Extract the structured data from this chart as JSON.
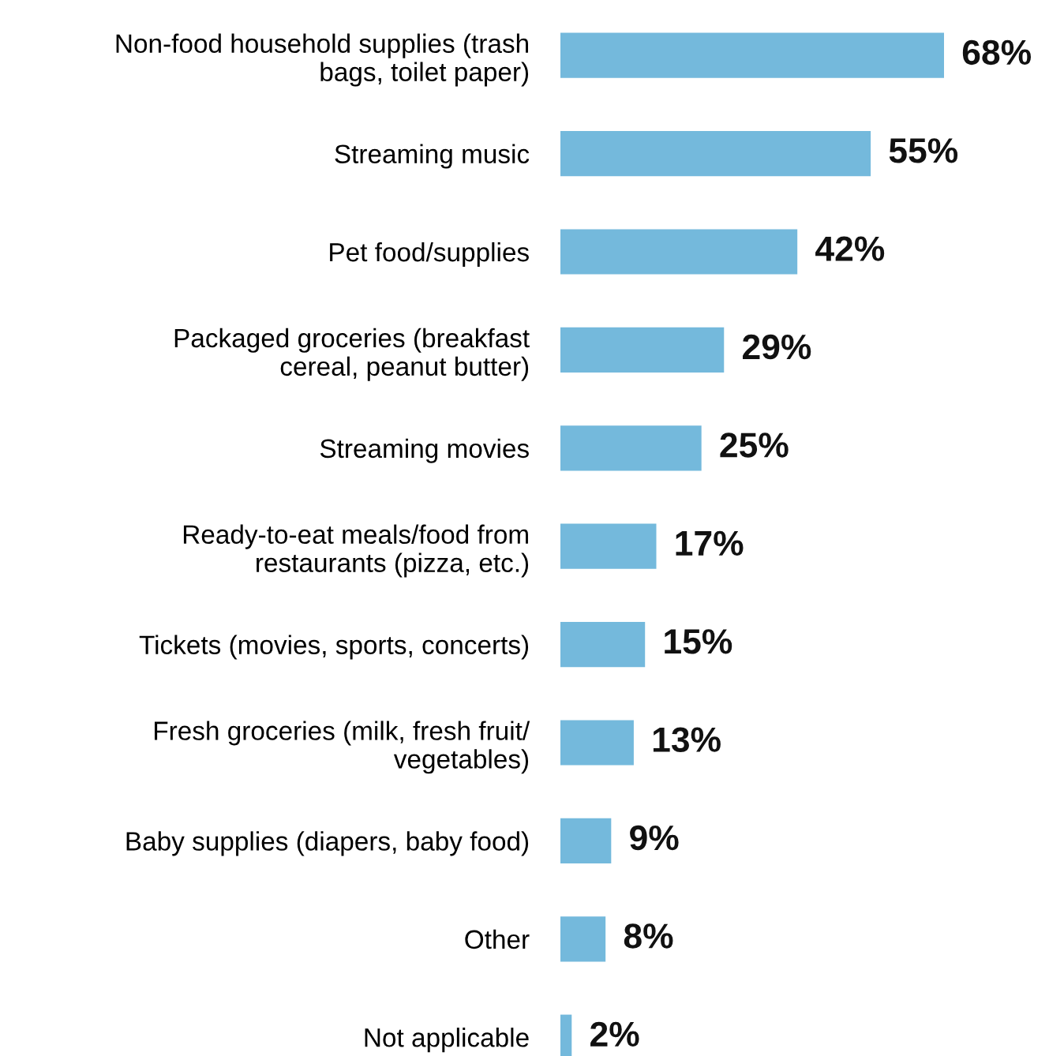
{
  "chart_data": {
    "type": "bar",
    "orientation": "horizontal",
    "categories": [
      "Non-food household supplies (trash\nbags, toilet paper)",
      "Streaming music",
      "Pet food/supplies",
      "Packaged groceries (breakfast\ncereal, peanut butter)",
      "Streaming movies",
      "Ready-to-eat meals/food from\nrestaurants (pizza, etc.)",
      "Tickets (movies, sports, concerts)",
      "Fresh groceries (milk, fresh fruit/\nvegetables)",
      "Baby supplies (diapers, baby food)",
      "Other",
      "Not applicable"
    ],
    "values": [
      68,
      55,
      42,
      29,
      25,
      17,
      15,
      13,
      9,
      8,
      2
    ],
    "value_labels": [
      "68%",
      "55%",
      "42%",
      "29%",
      "25%",
      "17%",
      "15%",
      "13%",
      "9%",
      "8%",
      "2%"
    ],
    "color": "#74b9dc",
    "grid": false,
    "legend": false
  }
}
